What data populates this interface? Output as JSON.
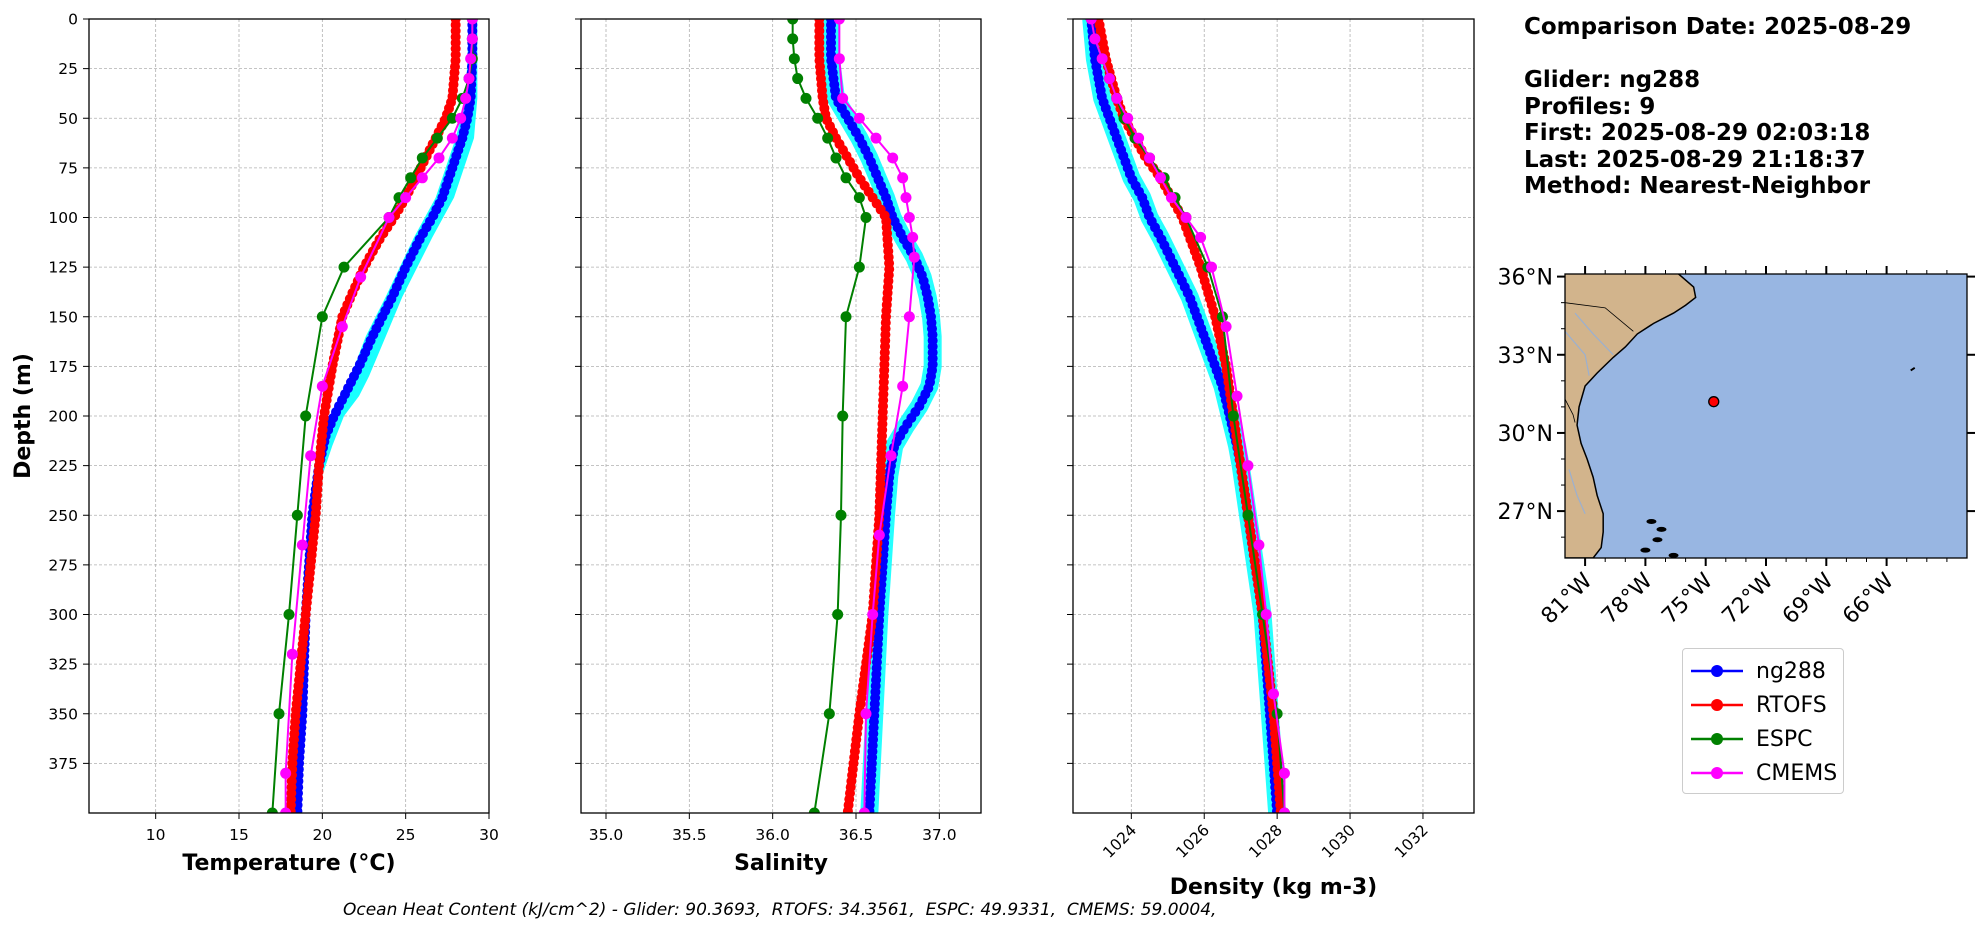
{
  "chart_data": [
    {
      "type": "line",
      "panel": "temperature",
      "xlabel": "Temperature (°C)",
      "ylabel": "Depth (m)",
      "xlim": [
        6,
        30
      ],
      "ylim": [
        400,
        0
      ],
      "xticks": [
        "10",
        "15",
        "20",
        "25",
        "30"
      ],
      "yticks": [
        "0",
        "25",
        "50",
        "75",
        "100",
        "125",
        "150",
        "175",
        "200",
        "225",
        "250",
        "275",
        "300",
        "325",
        "350",
        "375"
      ],
      "grid": true,
      "series": [
        {
          "name": "ng288",
          "color": "#0000ff",
          "depth": [
            0,
            20,
            40,
            50,
            60,
            75,
            90,
            100,
            110,
            125,
            140,
            150,
            160,
            175,
            185,
            200,
            210,
            225,
            250,
            275,
            300,
            325,
            350,
            375,
            400
          ],
          "values": [
            29.0,
            29.0,
            28.9,
            28.7,
            28.4,
            27.8,
            27.2,
            26.6,
            25.9,
            25.0,
            24.2,
            23.6,
            23.0,
            22.2,
            21.6,
            20.7,
            20.2,
            19.8,
            19.4,
            19.2,
            19.0,
            18.9,
            18.8,
            18.6,
            18.5
          ],
          "spread": {
            "color": "#00ffff",
            "depth": [
              0,
              40,
              60,
              90,
              110,
              140,
              160,
              180,
              190,
              200,
              215,
              230,
              260,
              300,
              400
            ],
            "low": [
              28.8,
              28.6,
              28.0,
              26.8,
              25.5,
              23.8,
              22.6,
              21.7,
              21.2,
              20.5,
              20.0,
              19.6,
              19.2,
              18.9,
              18.3
            ],
            "high": [
              29.3,
              29.3,
              29.1,
              27.9,
              26.6,
              24.8,
              23.8,
              22.8,
              22.2,
              21.3,
              20.6,
              20.0,
              19.5,
              19.2,
              18.7
            ]
          }
        },
        {
          "name": "RTOFS",
          "color": "#ff0000",
          "depth": [
            0,
            20,
            40,
            50,
            60,
            70,
            80,
            90,
            100,
            110,
            125,
            140,
            150,
            175,
            200,
            225,
            250,
            275,
            300,
            325,
            350,
            375,
            400
          ],
          "values": [
            28.0,
            28.0,
            27.8,
            27.4,
            26.8,
            26.2,
            25.6,
            25.0,
            24.3,
            23.5,
            22.5,
            21.7,
            21.2,
            20.6,
            20.1,
            19.8,
            19.6,
            19.3,
            19.0,
            18.7,
            18.4,
            18.2,
            18.1
          ]
        },
        {
          "name": "ESPC",
          "color": "#008000",
          "depth": [
            0,
            10,
            20,
            30,
            40,
            50,
            60,
            70,
            80,
            90,
            100,
            125,
            150,
            200,
            250,
            300,
            350,
            400
          ],
          "values": [
            29.0,
            29.0,
            29.0,
            28.8,
            28.4,
            27.8,
            26.9,
            26.0,
            25.3,
            24.6,
            24.0,
            21.3,
            20.0,
            19.0,
            18.5,
            18.0,
            17.4,
            17.0
          ]
        },
        {
          "name": "CMEMS",
          "color": "#ff00ff",
          "depth": [
            0,
            10,
            20,
            30,
            40,
            50,
            60,
            70,
            80,
            90,
            100,
            130,
            155,
            185,
            220,
            265,
            320,
            380,
            400
          ],
          "values": [
            29.0,
            29.0,
            28.9,
            28.8,
            28.6,
            28.3,
            27.8,
            27.0,
            26.0,
            25.0,
            24.0,
            22.3,
            21.2,
            20.0,
            19.3,
            18.8,
            18.2,
            17.8,
            17.8
          ]
        }
      ]
    },
    {
      "type": "line",
      "panel": "salinity",
      "xlabel": "Salinity",
      "xlim": [
        34.85,
        37.25
      ],
      "ylim": [
        400,
        0
      ],
      "xticks": [
        "35.0",
        "35.5",
        "36.0",
        "36.5",
        "37.0"
      ],
      "grid": true,
      "series": [
        {
          "name": "ng288",
          "color": "#0000ff",
          "depth": [
            0,
            20,
            40,
            50,
            60,
            70,
            80,
            90,
            100,
            110,
            120,
            130,
            140,
            150,
            160,
            175,
            185,
            195,
            205,
            215,
            230,
            250,
            300,
            350,
            400
          ],
          "values": [
            36.35,
            36.35,
            36.38,
            36.45,
            36.52,
            36.58,
            36.63,
            36.68,
            36.72,
            36.78,
            36.85,
            36.9,
            36.93,
            36.95,
            36.96,
            36.96,
            36.94,
            36.88,
            36.8,
            36.73,
            36.7,
            36.68,
            36.64,
            36.61,
            36.58
          ]
        },
        {
          "name": "RTOFS",
          "color": "#ff0000",
          "depth": [
            0,
            20,
            40,
            50,
            60,
            70,
            80,
            90,
            100,
            125,
            150,
            200,
            250,
            300,
            350,
            400
          ],
          "values": [
            36.28,
            36.28,
            36.3,
            36.32,
            36.38,
            36.45,
            36.52,
            36.6,
            36.68,
            36.7,
            36.68,
            36.66,
            36.64,
            36.6,
            36.52,
            36.45
          ]
        },
        {
          "name": "ESPC",
          "color": "#008000",
          "depth": [
            0,
            10,
            20,
            30,
            40,
            50,
            60,
            70,
            80,
            90,
            100,
            125,
            150,
            200,
            250,
            300,
            350,
            400
          ],
          "values": [
            36.12,
            36.12,
            36.13,
            36.15,
            36.2,
            36.27,
            36.33,
            36.38,
            36.44,
            36.52,
            36.56,
            36.52,
            36.44,
            36.42,
            36.41,
            36.39,
            36.34,
            36.25
          ]
        },
        {
          "name": "CMEMS",
          "color": "#ff00ff",
          "depth": [
            0,
            20,
            40,
            50,
            60,
            70,
            80,
            90,
            100,
            110,
            120,
            150,
            185,
            220,
            260,
            300,
            350,
            400
          ],
          "values": [
            36.4,
            36.4,
            36.42,
            36.52,
            36.62,
            36.72,
            36.78,
            36.8,
            36.82,
            36.84,
            36.85,
            36.82,
            36.78,
            36.71,
            36.64,
            36.6,
            36.56,
            36.55
          ]
        }
      ]
    },
    {
      "type": "line",
      "panel": "density",
      "xlabel": "Density (kg m-3)",
      "xlim": [
        1022.4,
        1033.4
      ],
      "ylim": [
        400,
        0
      ],
      "xticks": [
        "1024",
        "1026",
        "1028",
        "1030",
        "1032"
      ],
      "grid": true,
      "series": [
        {
          "name": "ng288",
          "color": "#0000ff",
          "depth": [
            0,
            20,
            40,
            50,
            60,
            70,
            80,
            90,
            100,
            110,
            125,
            140,
            150,
            160,
            175,
            185,
            200,
            215,
            225,
            250,
            275,
            300,
            325,
            350,
            375,
            400
          ],
          "values": [
            1022.9,
            1023.0,
            1023.2,
            1023.4,
            1023.6,
            1023.8,
            1024.0,
            1024.3,
            1024.5,
            1024.8,
            1025.2,
            1025.6,
            1025.8,
            1026.0,
            1026.3,
            1026.5,
            1026.7,
            1026.9,
            1027.0,
            1027.2,
            1027.4,
            1027.6,
            1027.7,
            1027.8,
            1027.9,
            1028.0
          ]
        },
        {
          "name": "RTOFS",
          "color": "#ff0000",
          "depth": [
            0,
            20,
            40,
            50,
            60,
            70,
            80,
            90,
            100,
            125,
            150,
            175,
            200,
            250,
            300,
            350,
            400
          ],
          "values": [
            1023.1,
            1023.3,
            1023.6,
            1023.8,
            1024.1,
            1024.4,
            1024.8,
            1025.1,
            1025.4,
            1025.9,
            1026.3,
            1026.6,
            1026.8,
            1027.2,
            1027.6,
            1027.9,
            1028.1
          ]
        },
        {
          "name": "ESPC",
          "color": "#008000",
          "depth": [
            0,
            10,
            20,
            30,
            40,
            50,
            60,
            70,
            80,
            90,
            100,
            125,
            150,
            200,
            250,
            300,
            350,
            400
          ],
          "values": [
            1022.9,
            1023.0,
            1023.2,
            1023.4,
            1023.6,
            1023.8,
            1024.1,
            1024.5,
            1024.9,
            1025.2,
            1025.5,
            1026.1,
            1026.5,
            1026.8,
            1027.2,
            1027.6,
            1028.0,
            1028.2
          ]
        },
        {
          "name": "CMEMS",
          "color": "#ff00ff",
          "depth": [
            0,
            10,
            20,
            30,
            40,
            50,
            60,
            70,
            80,
            90,
            100,
            110,
            125,
            155,
            190,
            225,
            265,
            300,
            340,
            380,
            400
          ],
          "values": [
            1022.9,
            1023.0,
            1023.2,
            1023.4,
            1023.6,
            1023.9,
            1024.2,
            1024.5,
            1024.8,
            1025.1,
            1025.5,
            1025.9,
            1026.2,
            1026.6,
            1026.9,
            1027.2,
            1027.5,
            1027.7,
            1027.9,
            1028.2,
            1028.2
          ]
        }
      ]
    }
  ],
  "map": {
    "lon_range": [
      -82.0,
      -62.0
    ],
    "lat_range": [
      25.2,
      36.1
    ],
    "lat_labels": [
      "36°N",
      "33°N",
      "30°N",
      "27°N"
    ],
    "lat_values": [
      36,
      33,
      30,
      27
    ],
    "lon_labels": [
      "81°W",
      "78°W",
      "75°W",
      "72°W",
      "69°W",
      "66°W"
    ],
    "lon_values": [
      -81,
      -78,
      -75,
      -72,
      -69,
      -66
    ],
    "marker": {
      "lon": -74.6,
      "lat": 31.2,
      "color": "#ff0000"
    },
    "ocean_color": "#98b6e2",
    "land_color": "#d2b48c"
  },
  "info_text": "Comparison Date: 2025-08-29\n\nGlider: ng288\nProfiles: 9\nFirst: 2025-08-29 02:03:18\nLast: 2025-08-29 21:18:37\nMethod: Nearest-Neighbor",
  "legend": [
    {
      "label": "ng288",
      "color": "#0000ff"
    },
    {
      "label": "RTOFS",
      "color": "#ff0000"
    },
    {
      "label": "ESPC",
      "color": "#008000"
    },
    {
      "label": "CMEMS",
      "color": "#ff00ff"
    }
  ],
  "footer": "Ocean Heat Content (kJ/cm^2) - Glider: 90.3693,  RTOFS: 34.3561,  ESPC: 49.9331,  CMEMS: 59.0004,"
}
